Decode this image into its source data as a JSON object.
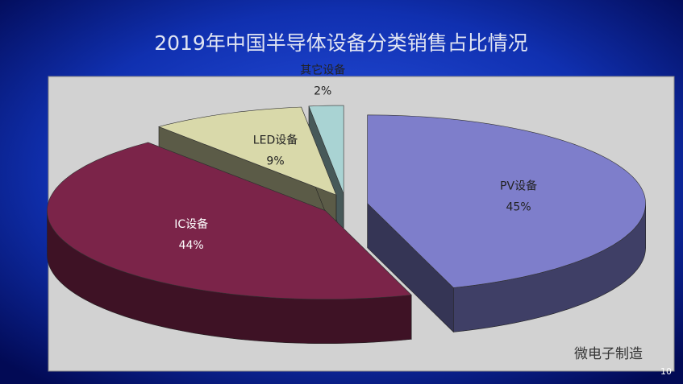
{
  "chart_data": {
    "type": "pie3d",
    "title": "2019年中国半导体设备分类销售占比情况",
    "categories": [
      "PV设备",
      "IC设备",
      "LED设备",
      "其它设备"
    ],
    "values": [
      45,
      44,
      9,
      2
    ],
    "value_labels": [
      "45%",
      "44%",
      "9%",
      "2%"
    ],
    "colors": [
      "#7e7ecb",
      "#7b2449",
      "#d9d9aa",
      "#a9d3d3"
    ]
  },
  "watermark": "微电子制造",
  "page_number": "10"
}
